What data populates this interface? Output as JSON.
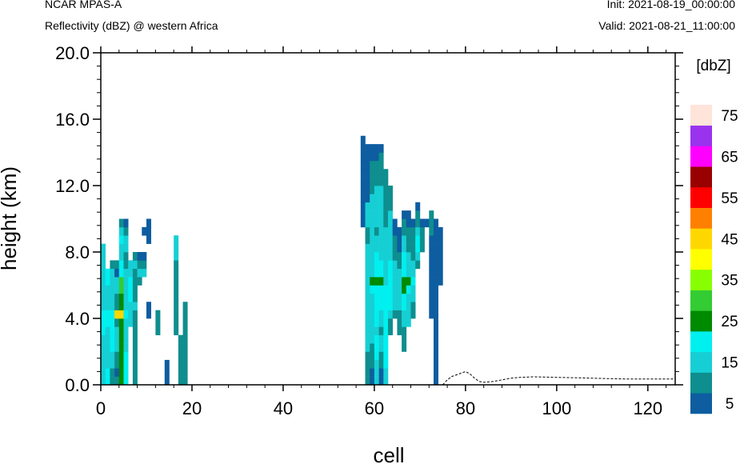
{
  "header": {
    "title_left": "NCAR MPAS-A",
    "subtitle_left": "Reflectivity (dBZ) @ western Africa",
    "init": "Init: 2021-08-19_00:00:00",
    "valid": "Valid: 2021-08-21_11:00:00"
  },
  "chart_data": {
    "type": "heatmap",
    "xlabel": "cell",
    "ylabel": "height (km)",
    "xlim": [
      0,
      126
    ],
    "ylim": [
      0,
      20
    ],
    "x_ticks": [
      "0",
      "20",
      "40",
      "60",
      "80",
      "100",
      "120"
    ],
    "y_ticks": [
      "0.0",
      "4.0",
      "8.0",
      "12.0",
      "16.0",
      "20.0"
    ],
    "grid": false,
    "colorbar": {
      "title": "[dbZ]",
      "levels": [
        5,
        10,
        15,
        20,
        25,
        30,
        35,
        40,
        45,
        50,
        55,
        60,
        65,
        70,
        75
      ],
      "labels": [
        "5",
        "15",
        "25",
        "35",
        "45",
        "55",
        "65",
        "75"
      ],
      "colors": [
        "#0d5da0",
        "#0e8e8e",
        "#16cfd4",
        "#00efef",
        "#008a00",
        "#33cc33",
        "#88ff00",
        "#ffff00",
        "#ffd700",
        "#ff8000",
        "#ff0000",
        "#990000",
        "#ff00ff",
        "#9933ee",
        "#ffe4da"
      ]
    },
    "column_bin_km": 0.5,
    "columns": [
      {
        "cell": 0,
        "levels": [
          15,
          15,
          15,
          15,
          15,
          15,
          20,
          20,
          20,
          15,
          15,
          15,
          15,
          15,
          15,
          15,
          15
        ]
      },
      {
        "cell": 1,
        "levels": [
          20,
          20,
          15,
          15,
          15,
          15,
          15,
          20,
          20,
          15,
          15,
          15,
          20,
          20
        ]
      },
      {
        "cell": 2,
        "levels": [
          10,
          10,
          15,
          15,
          20,
          20,
          20,
          20,
          20,
          15,
          15,
          15,
          15,
          15,
          10
        ]
      },
      {
        "cell": 3,
        "levels": [
          10,
          5,
          10,
          10,
          15,
          15,
          15,
          10,
          45,
          10,
          10,
          15,
          15,
          5,
          10
        ]
      },
      {
        "cell": 4,
        "levels": [
          25,
          25,
          25,
          25,
          25,
          25,
          25,
          25,
          45,
          25,
          25,
          30,
          30,
          20,
          20,
          15,
          15,
          20,
          15,
          10
        ]
      },
      {
        "cell": 5,
        "levels": [
          20,
          20,
          20,
          20,
          15,
          15,
          15,
          15,
          20,
          15,
          15,
          15,
          15,
          15,
          10,
          10,
          15,
          15,
          10,
          5
        ]
      },
      {
        "cell": 6,
        "levels": [
          0,
          0,
          0,
          0,
          0,
          0,
          0,
          15,
          15,
          15,
          20,
          20,
          20,
          15,
          15
        ]
      },
      {
        "cell": 7,
        "levels": [
          10,
          10,
          10,
          10,
          10,
          10,
          10,
          10,
          10,
          15,
          10,
          10,
          10,
          10,
          15,
          10
        ]
      },
      {
        "cell": 8,
        "levels": [
          0,
          0,
          0,
          0,
          0,
          0,
          0,
          0,
          0,
          0,
          0,
          0,
          10,
          15,
          10,
          5
        ]
      },
      {
        "cell": 9,
        "levels": [
          0,
          0,
          0,
          0,
          0,
          0,
          0,
          0,
          0,
          0,
          0,
          0,
          0,
          15,
          10,
          5,
          0,
          0,
          5
        ]
      },
      {
        "cell": 10,
        "levels": [
          0,
          0,
          0,
          0,
          0,
          0,
          0,
          0,
          5,
          5,
          0,
          0,
          0,
          0,
          0,
          0,
          0,
          5,
          5,
          5
        ]
      },
      {
        "cell": 12,
        "levels": [
          0,
          0,
          0,
          0,
          0,
          0,
          10,
          10,
          10
        ]
      },
      {
        "cell": 14,
        "levels": [
          5,
          5,
          5
        ]
      },
      {
        "cell": 16,
        "levels": [
          0,
          0,
          0,
          0,
          0,
          0,
          10,
          10,
          10,
          10,
          10,
          10,
          10,
          10,
          10,
          15,
          15,
          15
        ]
      },
      {
        "cell": 17,
        "levels": [
          10,
          10,
          10,
          10,
          10,
          10
        ]
      },
      {
        "cell": 18,
        "levels": [
          10,
          10,
          10,
          10,
          10,
          10,
          10,
          10,
          10,
          10
        ]
      },
      {
        "cell": 57,
        "levels": [
          0,
          0,
          0,
          0,
          0,
          0,
          0,
          0,
          0,
          0,
          0,
          0,
          0,
          0,
          0,
          0,
          0,
          0,
          0,
          5,
          5,
          5,
          5,
          5,
          5,
          5,
          5,
          5,
          5,
          5
        ]
      },
      {
        "cell": 58,
        "levels": [
          10,
          10,
          10,
          10,
          15,
          15,
          15,
          15,
          15,
          15,
          15,
          15,
          15,
          15,
          15,
          15,
          15,
          10,
          10,
          15,
          15,
          15,
          5,
          5,
          5,
          5,
          5,
          5,
          5
        ]
      },
      {
        "cell": 59,
        "levels": [
          5,
          5,
          10,
          10,
          10,
          15,
          15,
          15,
          15,
          15,
          15,
          20,
          25,
          15,
          15,
          15,
          15,
          15,
          15,
          15,
          15,
          15,
          15,
          10,
          10,
          10,
          10,
          5,
          5
        ]
      },
      {
        "cell": 60,
        "levels": [
          15,
          15,
          15,
          20,
          20,
          20,
          15,
          20,
          20,
          20,
          20,
          20,
          25,
          20,
          20,
          20,
          15,
          15,
          10,
          15,
          15,
          15,
          15,
          15,
          10,
          10,
          10,
          5,
          5
        ]
      },
      {
        "cell": 61,
        "levels": [
          5,
          5,
          10,
          10,
          15,
          15,
          10,
          15,
          15,
          20,
          20,
          20,
          25,
          20,
          20,
          15,
          15,
          15,
          15,
          15,
          15,
          15,
          15,
          15,
          10,
          10,
          10,
          10,
          5
        ]
      },
      {
        "cell": 62,
        "levels": [
          15,
          15,
          20,
          20,
          20,
          20,
          20,
          20,
          20,
          20,
          20,
          20,
          15,
          15,
          15,
          15,
          15,
          15,
          15,
          10,
          10,
          10,
          10,
          10,
          10,
          10
        ]
      },
      {
        "cell": 63,
        "levels": [
          0,
          0,
          0,
          0,
          0,
          0,
          10,
          10,
          15,
          20,
          20,
          20,
          20,
          20,
          20,
          15,
          15,
          15,
          15,
          15,
          15,
          10,
          10,
          10
        ]
      },
      {
        "cell": 64,
        "levels": [
          0,
          0,
          0,
          0,
          0,
          0,
          0,
          0,
          10,
          15,
          15,
          15,
          15,
          15,
          15,
          10,
          10,
          10,
          5,
          5
        ]
      },
      {
        "cell": 65,
        "levels": [
          0,
          0,
          0,
          0,
          0,
          0,
          10,
          10,
          10,
          15,
          15,
          15,
          15,
          15,
          10,
          10,
          5,
          5,
          5
        ]
      },
      {
        "cell": 66,
        "levels": [
          0,
          0,
          0,
          0,
          10,
          10,
          10,
          15,
          15,
          20,
          20,
          25,
          25,
          20,
          20,
          20,
          15,
          15,
          10,
          10,
          5
        ]
      },
      {
        "cell": 67,
        "levels": [
          0,
          0,
          0,
          0,
          0,
          0,
          0,
          15,
          15,
          15,
          15,
          20,
          25,
          15,
          15,
          15,
          10,
          10,
          10,
          5,
          5
        ]
      },
      {
        "cell": 68,
        "levels": [
          0,
          0,
          0,
          0,
          0,
          0,
          0,
          0,
          10,
          10,
          15,
          15,
          20,
          15,
          15,
          10,
          10,
          10,
          10,
          5
        ]
      },
      {
        "cell": 69,
        "levels": [
          0,
          0,
          0,
          0,
          0,
          0,
          0,
          0,
          0,
          0,
          0,
          0,
          0,
          0,
          10,
          15,
          20,
          20,
          15,
          10,
          10,
          5
        ]
      },
      {
        "cell": 70,
        "levels": [
          0,
          0,
          0,
          0,
          0,
          0,
          0,
          0,
          0,
          0,
          0,
          0,
          0,
          0,
          0,
          0,
          10,
          10,
          10,
          5
        ]
      },
      {
        "cell": 71,
        "levels": [
          0,
          0,
          0,
          0,
          0,
          0,
          0,
          0,
          0,
          0,
          0,
          0,
          0,
          0,
          0,
          0,
          0,
          0,
          0,
          5
        ]
      },
      {
        "cell": 72,
        "levels": [
          0,
          0,
          0,
          0,
          0,
          0,
          0,
          0,
          5,
          5,
          5,
          5,
          5,
          5,
          5,
          5,
          5,
          5,
          10,
          10,
          10
        ]
      },
      {
        "cell": 73,
        "levels": [
          5,
          5,
          5,
          5,
          5,
          5,
          5,
          5,
          5,
          5,
          5,
          5,
          5,
          5,
          5,
          5,
          5,
          5,
          5,
          5
        ]
      },
      {
        "cell": 74,
        "levels": [
          0,
          0,
          0,
          0,
          0,
          0,
          0,
          0,
          0,
          0,
          0,
          0,
          5,
          5,
          5,
          5,
          5,
          5,
          5
        ]
      }
    ],
    "terrain_height_km": [
      [
        75,
        0.0
      ],
      [
        76,
        0.3
      ],
      [
        77,
        0.5
      ],
      [
        78,
        0.6
      ],
      [
        79,
        0.7
      ],
      [
        80,
        0.8
      ],
      [
        81,
        0.65
      ],
      [
        82,
        0.4
      ],
      [
        83,
        0.2
      ],
      [
        84,
        0.15
      ],
      [
        86,
        0.2
      ],
      [
        88,
        0.3
      ],
      [
        90,
        0.4
      ],
      [
        92,
        0.45
      ],
      [
        95,
        0.48
      ],
      [
        100,
        0.45
      ],
      [
        105,
        0.42
      ],
      [
        110,
        0.38
      ],
      [
        115,
        0.35
      ],
      [
        120,
        0.35
      ],
      [
        126,
        0.35
      ]
    ]
  }
}
